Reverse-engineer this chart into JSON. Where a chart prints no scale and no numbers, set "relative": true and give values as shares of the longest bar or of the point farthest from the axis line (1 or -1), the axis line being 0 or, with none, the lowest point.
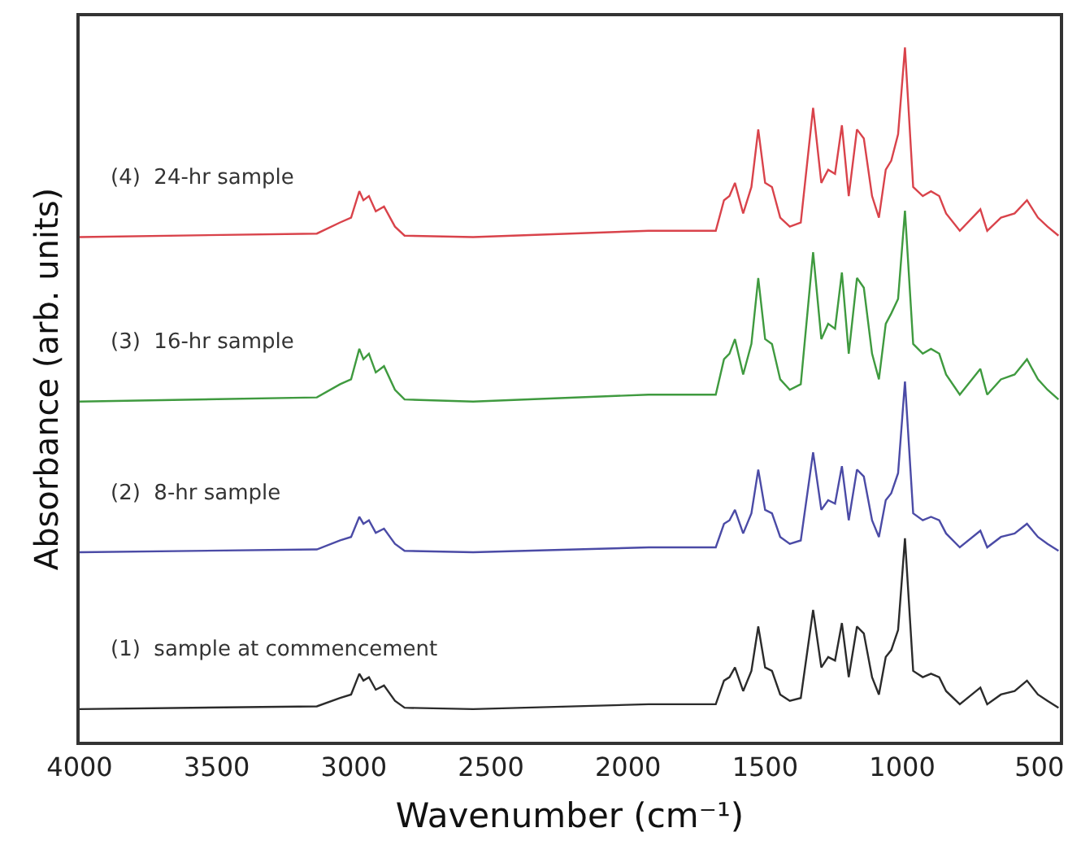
{
  "chart_data": {
    "type": "line",
    "relative": true,
    "xlabel": "Wavenumber (cm⁻¹)",
    "ylabel": "Absorbance (arb. units)",
    "x": [
      4000,
      3135,
      3050,
      3010,
      2980,
      2965,
      2945,
      2920,
      2890,
      2850,
      2815,
      2565,
      1925,
      1680,
      1650,
      1630,
      1610,
      1580,
      1550,
      1525,
      1500,
      1475,
      1445,
      1410,
      1370,
      1325,
      1295,
      1270,
      1245,
      1220,
      1195,
      1165,
      1140,
      1110,
      1085,
      1060,
      1040,
      1015,
      990,
      960,
      925,
      895,
      865,
      840,
      790,
      715,
      690,
      640,
      590,
      545,
      505,
      470,
      430
    ],
    "xlim": [
      4000,
      425
    ],
    "xticks": [
      4000,
      3500,
      3000,
      2500,
      2000,
      1500,
      1000,
      500
    ],
    "grid": false,
    "legend": false,
    "marker": "none",
    "line_style": "solid",
    "series": [
      {
        "name": "(1)  sample at commencement",
        "color": "#2b2b2b",
        "values": [
          0.047,
          0.051,
          0.063,
          0.068,
          0.098,
          0.088,
          0.093,
          0.075,
          0.081,
          0.059,
          0.049,
          0.047,
          0.054,
          0.054,
          0.088,
          0.093,
          0.107,
          0.073,
          0.102,
          0.166,
          0.107,
          0.102,
          0.068,
          0.059,
          0.063,
          0.19,
          0.107,
          0.122,
          0.117,
          0.171,
          0.093,
          0.166,
          0.156,
          0.093,
          0.068,
          0.122,
          0.132,
          0.161,
          0.293,
          0.102,
          0.093,
          0.098,
          0.093,
          0.073,
          0.054,
          0.078,
          0.054,
          0.068,
          0.073,
          0.088,
          0.068,
          0.059,
          0.049
        ]
      },
      {
        "name": "(2)  8-hr sample",
        "color": "#4b4ba6",
        "values": [
          0.273,
          0.277,
          0.29,
          0.295,
          0.324,
          0.314,
          0.319,
          0.301,
          0.307,
          0.285,
          0.275,
          0.273,
          0.28,
          0.28,
          0.314,
          0.319,
          0.334,
          0.3,
          0.329,
          0.392,
          0.334,
          0.329,
          0.295,
          0.285,
          0.29,
          0.417,
          0.334,
          0.348,
          0.343,
          0.397,
          0.319,
          0.392,
          0.382,
          0.319,
          0.295,
          0.348,
          0.358,
          0.387,
          0.519,
          0.329,
          0.319,
          0.324,
          0.319,
          0.3,
          0.28,
          0.304,
          0.28,
          0.295,
          0.3,
          0.314,
          0.295,
          0.285,
          0.275
        ]
      },
      {
        "name": "(3)  16-hr sample",
        "color": "#3f9a3f",
        "values": [
          0.49,
          0.496,
          0.515,
          0.522,
          0.566,
          0.551,
          0.559,
          0.532,
          0.541,
          0.507,
          0.493,
          0.49,
          0.5,
          0.5,
          0.551,
          0.559,
          0.58,
          0.529,
          0.573,
          0.668,
          0.58,
          0.573,
          0.522,
          0.507,
          0.515,
          0.705,
          0.58,
          0.602,
          0.595,
          0.676,
          0.559,
          0.668,
          0.654,
          0.559,
          0.522,
          0.602,
          0.617,
          0.638,
          0.765,
          0.573,
          0.559,
          0.566,
          0.559,
          0.529,
          0.5,
          0.537,
          0.5,
          0.522,
          0.529,
          0.551,
          0.522,
          0.507,
          0.493
        ]
      },
      {
        "name": "(4)  24-hr sample",
        "color": "#d9434b",
        "values": [
          0.727,
          0.732,
          0.748,
          0.755,
          0.793,
          0.78,
          0.786,
          0.764,
          0.771,
          0.742,
          0.729,
          0.727,
          0.736,
          0.736,
          0.78,
          0.786,
          0.805,
          0.761,
          0.799,
          0.882,
          0.805,
          0.799,
          0.755,
          0.742,
          0.748,
          0.913,
          0.805,
          0.824,
          0.818,
          0.888,
          0.786,
          0.882,
          0.869,
          0.786,
          0.755,
          0.824,
          0.837,
          0.875,
          1.0,
          0.799,
          0.786,
          0.793,
          0.786,
          0.761,
          0.736,
          0.767,
          0.736,
          0.755,
          0.761,
          0.78,
          0.755,
          0.742,
          0.729
        ]
      }
    ]
  }
}
